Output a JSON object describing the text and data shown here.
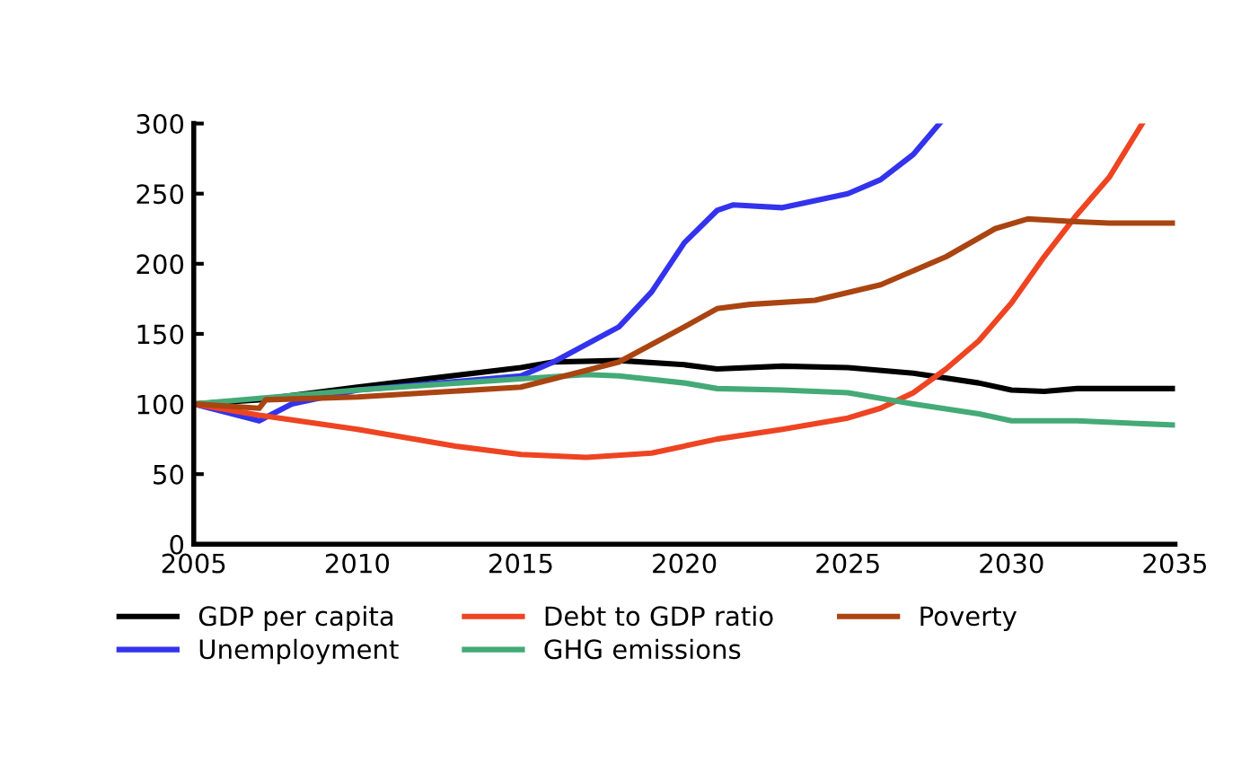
{
  "chart_data": {
    "type": "line",
    "xlim": [
      2005,
      2035
    ],
    "xticks": [
      2005,
      2010,
      2015,
      2020,
      2025,
      2030,
      2035
    ],
    "ylim": [
      0,
      300
    ],
    "yticks": [
      0,
      50,
      100,
      150,
      200,
      250,
      300
    ],
    "grid": false,
    "legend": "bottom",
    "marker": "none",
    "line_style": "solid",
    "series": [
      {
        "name": "GDP per capita",
        "color": "#000000",
        "x": [
          2005,
          2007,
          2010,
          2015,
          2016,
          2018,
          2020,
          2021,
          2023,
          2025,
          2027,
          2029,
          2030,
          2031,
          2032,
          2035
        ],
        "values": [
          100,
          103,
          112,
          126,
          130,
          131,
          128,
          125,
          127,
          126,
          122,
          115,
          110,
          109,
          111,
          111
        ]
      },
      {
        "name": "Unemployment",
        "color": "#3333ee",
        "x": [
          2005,
          2007,
          2008,
          2010,
          2015,
          2016,
          2018,
          2019,
          2020,
          2021,
          2021.5,
          2023,
          2025,
          2026,
          2027,
          2027.8
        ],
        "values": [
          100,
          88,
          100,
          110,
          120,
          130,
          155,
          180,
          215,
          238,
          242,
          240,
          250,
          260,
          278,
          300
        ]
      },
      {
        "name": "Debt to GDP ratio",
        "color": "#ee4422",
        "x": [
          2005,
          2007,
          2010,
          2013,
          2015,
          2017,
          2019,
          2021,
          2023,
          2025,
          2026,
          2027,
          2028,
          2029,
          2030,
          2031,
          2032,
          2033,
          2034
        ],
        "values": [
          100,
          92,
          82,
          70,
          64,
          62,
          65,
          75,
          82,
          90,
          97,
          108,
          125,
          145,
          172,
          205,
          235,
          262,
          300
        ]
      },
      {
        "name": "GHG emissions",
        "color": "#44aa77",
        "x": [
          2005,
          2007,
          2010,
          2015,
          2017,
          2018,
          2020,
          2021,
          2023,
          2025,
          2027,
          2029,
          2030,
          2032,
          2035
        ],
        "values": [
          100,
          104,
          110,
          118,
          121,
          120,
          115,
          111,
          110,
          108,
          100,
          93,
          88,
          88,
          85
        ]
      },
      {
        "name": "Poverty",
        "color": "#aa4411",
        "x": [
          2005,
          2007,
          2007.2,
          2010,
          2015,
          2016,
          2018,
          2020,
          2021,
          2022,
          2024,
          2026,
          2028,
          2029.5,
          2030.5,
          2032,
          2033,
          2035
        ],
        "values": [
          100,
          97,
          103,
          105,
          112,
          118,
          130,
          155,
          168,
          171,
          174,
          185,
          205,
          225,
          232,
          230,
          229,
          229
        ]
      }
    ]
  }
}
